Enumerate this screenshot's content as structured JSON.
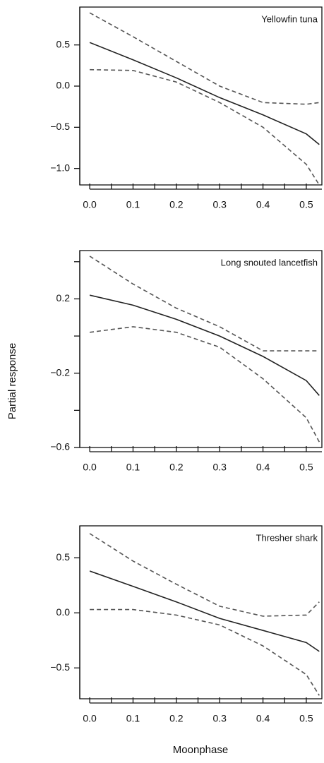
{
  "chart_data": [
    {
      "type": "line",
      "label": "Yellowfin tuna",
      "x": [
        0,
        0.1,
        0.2,
        0.3,
        0.4,
        0.5,
        0.53
      ],
      "series": [
        {
          "color": "#222222",
          "dashed": false,
          "values": [
            0.53,
            0.32,
            0.1,
            -0.14,
            -0.35,
            -0.58,
            -0.71
          ]
        },
        {
          "color": "#555555",
          "dashed": true,
          "values": [
            0.89,
            0.6,
            0.3,
            0.0,
            -0.2,
            -0.22,
            -0.2
          ]
        },
        {
          "color": "#555555",
          "dashed": true,
          "values": [
            0.2,
            0.19,
            0.05,
            -0.2,
            -0.5,
            -0.95,
            -1.2
          ]
        }
      ],
      "xlim": [
        -0.023,
        0.536
      ],
      "ylim": [
        -1.2,
        0.96
      ],
      "xticks": [
        {
          "value": 0,
          "label": "0.0"
        },
        0.1,
        0.2,
        0.3,
        0.4,
        0.5
      ],
      "xminor": [
        0.05,
        0.15,
        0.25,
        0.35,
        0.45
      ],
      "yticks": [
        {
          "value": 0.5,
          "label": "0.5"
        },
        {
          "value": 0,
          "label": "0.0"
        },
        {
          "value": -0.5,
          "label": "−0.5"
        },
        {
          "value": -1,
          "label": "−1.0"
        }
      ],
      "yminor": []
    },
    {
      "type": "line",
      "label": "Long snouted lancetfish",
      "x": [
        0,
        0.1,
        0.2,
        0.3,
        0.4,
        0.5,
        0.53
      ],
      "series": [
        {
          "color": "#222222",
          "dashed": false,
          "values": [
            0.22,
            0.166,
            0.09,
            0.0,
            -0.11,
            -0.24,
            -0.32
          ]
        },
        {
          "color": "#555555",
          "dashed": true,
          "values": [
            0.43,
            0.28,
            0.15,
            0.05,
            -0.08,
            -0.08,
            -0.08
          ]
        },
        {
          "color": "#555555",
          "dashed": true,
          "values": [
            0.02,
            0.05,
            0.02,
            -0.06,
            -0.23,
            -0.44,
            -0.57
          ]
        }
      ],
      "xlim": [
        -0.023,
        0.536
      ],
      "ylim": [
        -0.6,
        0.46
      ],
      "xticks": [
        {
          "value": 0,
          "label": "0.0"
        },
        0.1,
        0.2,
        0.3,
        0.4,
        0.5
      ],
      "xminor": [
        0.05,
        0.15,
        0.25,
        0.35,
        0.45
      ],
      "yticks": [
        0.2,
        {
          "value": -0.2,
          "label": "−0.2"
        },
        {
          "value": -0.6,
          "label": "−0.6"
        }
      ],
      "yminor": [
        0.4,
        0,
        -0.4
      ]
    },
    {
      "type": "line",
      "label": "Thresher shark",
      "x": [
        0,
        0.1,
        0.2,
        0.3,
        0.4,
        0.5,
        0.53
      ],
      "series": [
        {
          "color": "#222222",
          "dashed": false,
          "values": [
            0.38,
            0.24,
            0.1,
            -0.05,
            -0.16,
            -0.27,
            -0.35
          ]
        },
        {
          "color": "#555555",
          "dashed": true,
          "values": [
            0.72,
            0.47,
            0.26,
            0.06,
            -0.03,
            -0.02,
            0.1
          ]
        },
        {
          "color": "#555555",
          "dashed": true,
          "values": [
            0.03,
            0.03,
            -0.02,
            -0.11,
            -0.3,
            -0.56,
            -0.75
          ]
        }
      ],
      "xlim": [
        -0.023,
        0.536
      ],
      "ylim": [
        -0.78,
        0.79
      ],
      "xticks": [
        {
          "value": 0,
          "label": "0.0"
        },
        0.1,
        0.2,
        0.3,
        0.4,
        0.5
      ],
      "xminor": [
        0.05,
        0.15,
        0.25,
        0.35,
        0.45
      ],
      "yticks": [
        {
          "value": 0.5,
          "label": "0.5"
        },
        {
          "value": 0,
          "label": "0.0"
        },
        {
          "value": -0.5,
          "label": "−0.5"
        }
      ],
      "yminor": []
    }
  ],
  "ylabel": "Partial response",
  "xlabel": "Moonphase"
}
